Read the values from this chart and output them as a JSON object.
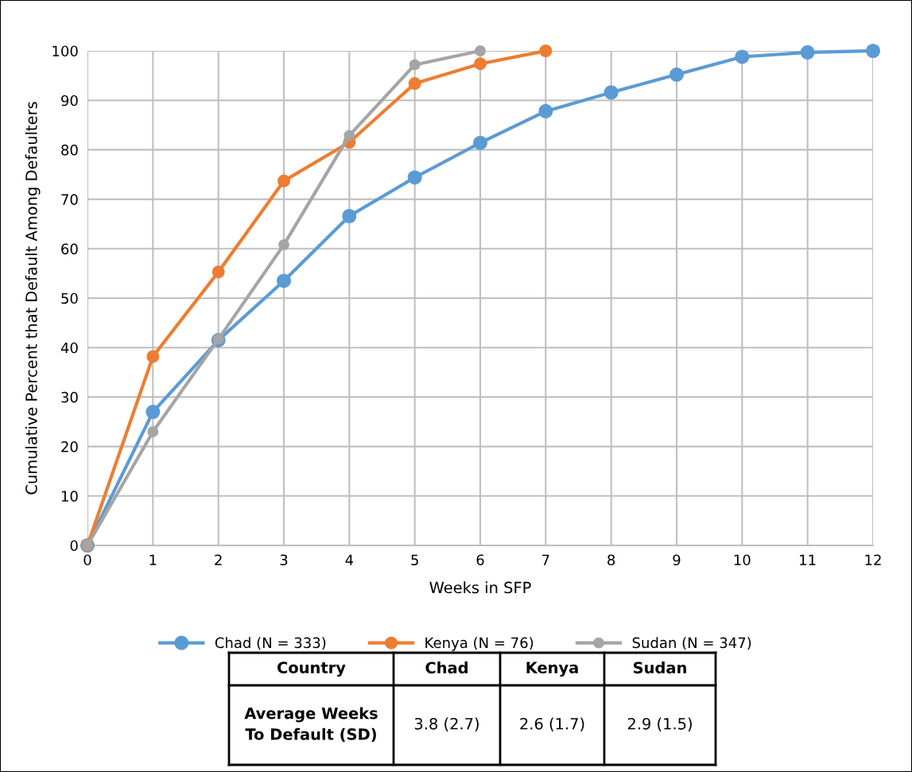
{
  "chart_data": {
    "type": "line",
    "xlabel": "Weeks in SFP",
    "ylabel": "Cumulative Percent that Default Among Defaulters",
    "x": [
      0,
      1,
      2,
      3,
      4,
      5,
      6,
      7,
      8,
      9,
      10,
      11,
      12
    ],
    "series": [
      {
        "name": "Chad (N = 333)",
        "color": "#5b9bd5",
        "values": [
          0,
          27.0,
          41.5,
          53.5,
          66.6,
          74.4,
          81.4,
          87.8,
          91.6,
          95.2,
          98.8,
          99.7,
          100
        ]
      },
      {
        "name": "Kenya (N = 76)",
        "color": "#ed7d31",
        "values": [
          0,
          38.2,
          55.3,
          73.7,
          81.5,
          93.4,
          97.4,
          100,
          null,
          null,
          null,
          null,
          null
        ]
      },
      {
        "name": "Sudan (N = 347)",
        "color": "#a5a5a5",
        "values": [
          0,
          23.0,
          41.7,
          60.8,
          82.9,
          97.2,
          100,
          null,
          null,
          null,
          null,
          null,
          null
        ]
      }
    ],
    "xlim": [
      0,
      12
    ],
    "xticks": [
      0,
      1,
      2,
      3,
      4,
      5,
      6,
      7,
      8,
      9,
      10,
      11,
      12
    ],
    "ylim": [
      0,
      100
    ],
    "yticks": [
      0,
      10,
      20,
      30,
      40,
      50,
      60,
      70,
      80,
      90,
      100
    ],
    "grid": true,
    "legend": "bottom",
    "marker": "circle",
    "line_style": "solid",
    "annotations": [
      "Country",
      "Chad",
      "Kenya",
      "Sudan",
      "Average Weeks\nTo Default (SD)",
      "3.8 (2.7)",
      "2.6 (1.7)",
      "2.9 (1.5)"
    ]
  }
}
